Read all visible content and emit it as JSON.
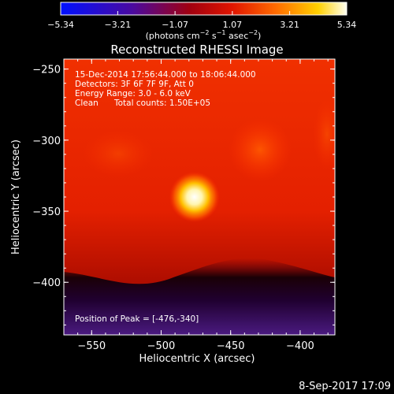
{
  "colorbar": {
    "ticks": [
      "−5.34",
      "−3.21",
      "−1.07",
      "1.07",
      "3.21",
      "5.34"
    ],
    "unit_parts": [
      "(photons cm",
      "−2",
      " s",
      "−1",
      " asec",
      "−2",
      ")"
    ]
  },
  "chart_data": {
    "type": "heatmap",
    "title": "Reconstructed RHESSI Image",
    "xlabel": "Heliocentric X (arcsec)",
    "ylabel": "Heliocentric Y (arcsec)",
    "xlim": [
      -570,
      -375
    ],
    "ylim": [
      -437,
      -243
    ],
    "x_ticks": [
      -550,
      -500,
      -450,
      -400
    ],
    "y_ticks": [
      -250,
      -300,
      -350,
      -400
    ],
    "x_tick_labels": [
      "−550",
      "−500",
      "−450",
      "−400"
    ],
    "y_tick_labels": [
      "−250",
      "−300",
      "−350",
      "−400"
    ],
    "color_range": [
      -5.34,
      5.34
    ],
    "colormap": "rhessi-gold (blue-purple-red-orange-yellow-white)",
    "peak": {
      "x": -476,
      "y": -340
    },
    "annotations": [
      "15-Dec-2014 17:56:44.000 to 18:06:44.000",
      "Detectors: 3F 6F 7F 9F, Att 0",
      "Energy Range: 3.0 - 6.0 keV",
      "Clean",
      "Total counts: 1.50E+05"
    ],
    "peak_label": "Position of Peak = [-476,-340]"
  },
  "footer": {
    "timestamp": "8-Sep-2017 17:09"
  }
}
